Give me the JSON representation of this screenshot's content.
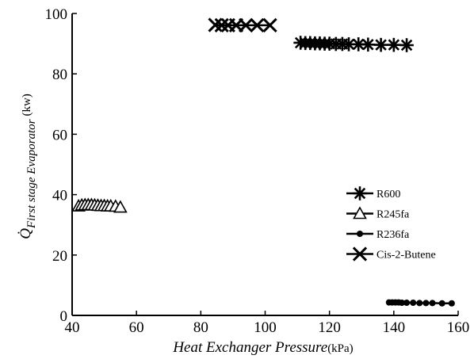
{
  "chart_data": {
    "type": "scatter",
    "xlabel": "Heat Exchanger Pressure",
    "xlabel_unit": "(kPa)",
    "ylabel_symbol": "Q̇",
    "ylabel_subscript": "First stage Evaporator",
    "ylabel_unit": "(kw)",
    "xlim": [
      40,
      160
    ],
    "ylim": [
      0,
      100
    ],
    "xticks": [
      40,
      60,
      80,
      100,
      120,
      140,
      160
    ],
    "yticks": [
      0,
      20,
      40,
      60,
      80,
      100
    ],
    "grid": false,
    "legend_position": "middle-right",
    "series": [
      {
        "name": "R600",
        "marker": "asterisk",
        "x": [
          111,
          112.5,
          114,
          115.5,
          117,
          118.5,
          120,
          122,
          124,
          126,
          129,
          132,
          136,
          140,
          144
        ],
        "y": [
          90.3,
          90.2,
          90.2,
          90.1,
          90.1,
          90.0,
          90.0,
          89.9,
          89.9,
          89.8,
          89.8,
          89.7,
          89.6,
          89.6,
          89.5
        ]
      },
      {
        "name": "R245fa",
        "marker": "triangle",
        "x": [
          42,
          43,
          44,
          45,
          46,
          47,
          48,
          49,
          50,
          51,
          52,
          53.5,
          55
        ],
        "y": [
          36.2,
          36.5,
          36.6,
          36.6,
          36.6,
          36.5,
          36.4,
          36.3,
          36.3,
          36.2,
          36.2,
          36.1,
          35.8
        ]
      },
      {
        "name": "R236fa",
        "marker": "dot",
        "x": [
          138.5,
          139.5,
          140.5,
          141.5,
          142.5,
          144,
          146,
          148,
          150,
          152,
          155,
          158
        ],
        "y": [
          4.3,
          4.3,
          4.3,
          4.3,
          4.2,
          4.2,
          4.2,
          4.1,
          4.1,
          4.1,
          4.0,
          4.0
        ]
      },
      {
        "name": "Cis-2-Butene",
        "marker": "x",
        "x": [
          84.5,
          86.5,
          88.5,
          91,
          94,
          97.5,
          101.5
        ],
        "y": [
          96.2,
          96.1,
          96.1,
          96.1,
          96.1,
          96.1,
          96.1
        ]
      }
    ]
  }
}
